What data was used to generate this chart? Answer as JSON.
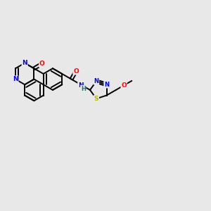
{
  "bg_color": "#e8e8e8",
  "atom_colors": {
    "N": "#0000ff",
    "O": "#ff0000",
    "S": "#b8b800",
    "C": "#000000",
    "H": "#008080"
  },
  "bond_color": "#000000",
  "bond_width": 1.4,
  "dbo": 0.07
}
